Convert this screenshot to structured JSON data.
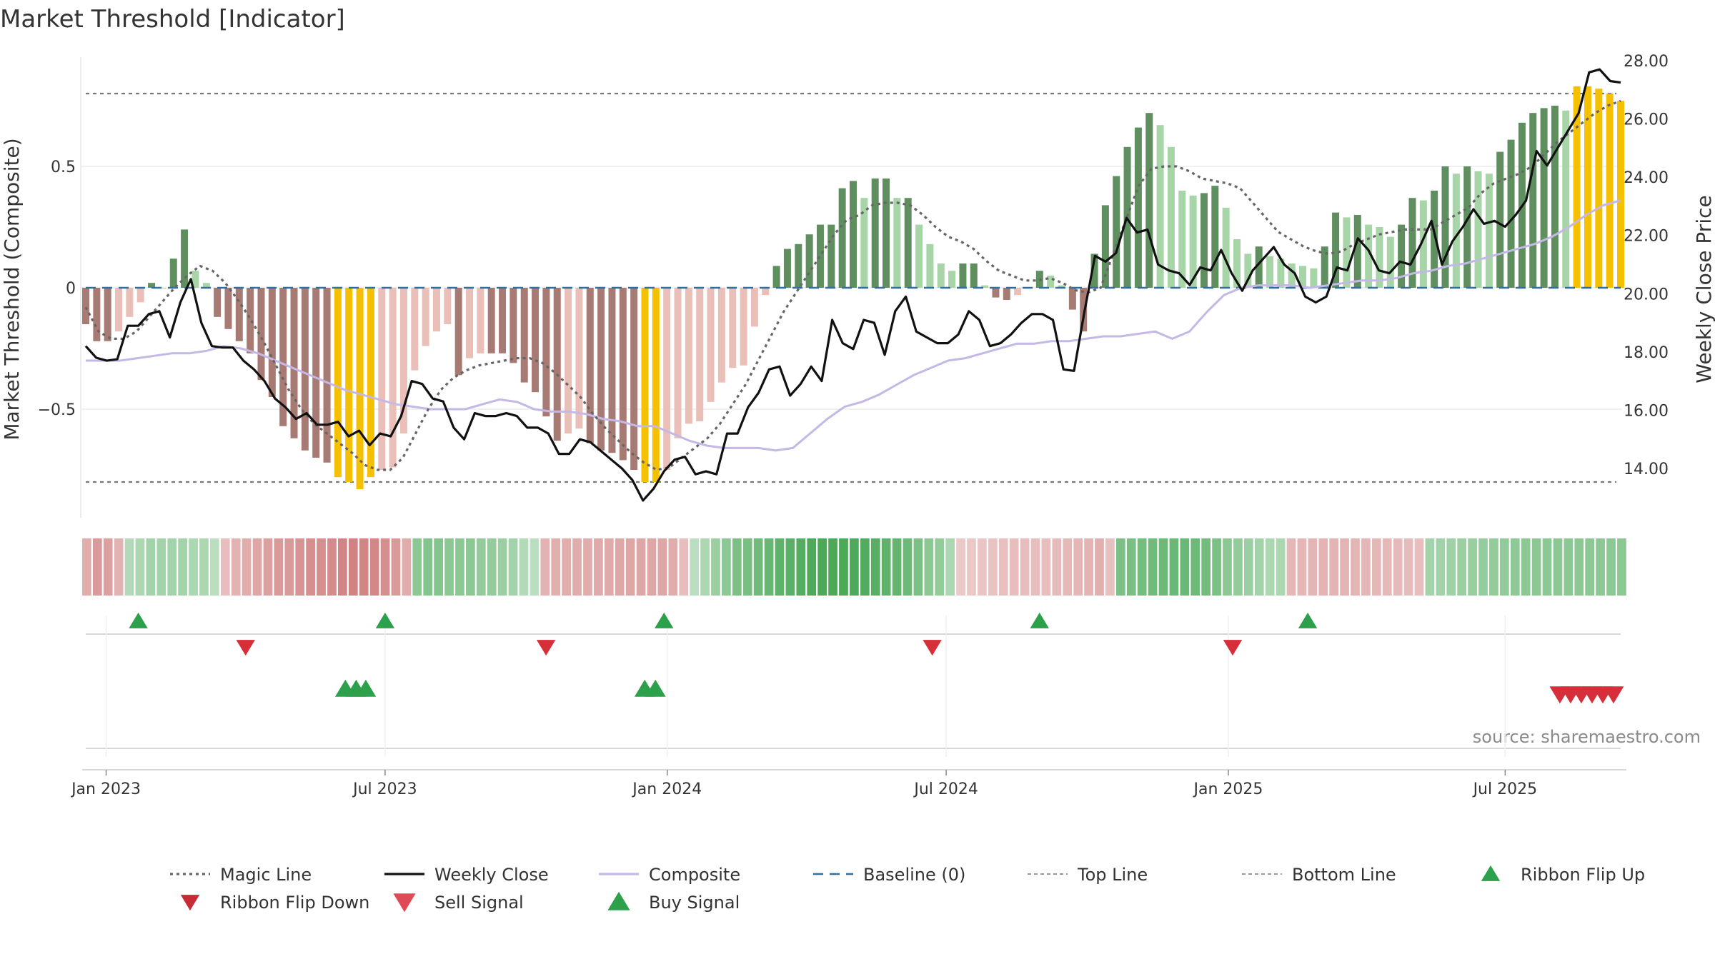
{
  "colors": {
    "close": "#111111",
    "magic": "#666666",
    "composite": "#c4b8e6",
    "baseline": "#2f6f9f",
    "threshold": "#777777",
    "bar_strong_pos": "#5f8f5f",
    "bar_weak_pos": "#a8d5a8",
    "bar_strong_neg": "#a87a74",
    "bar_weak_neg": "#eabfb8",
    "bar_extreme": "#f5c000",
    "ribbon_pos": "#3fa34d",
    "ribbon_neg": "#c96a6a",
    "signal_up": "#2ca04a",
    "signal_down": "#d62f3a"
  },
  "chart_data": {
    "type": "bar",
    "title": "Market Threshold [Indicator]",
    "ylabel_left": "Market Threshold (Composite)",
    "ylabel_right": "Weekly Close Price",
    "source": "source: sharemaestro.com",
    "left_ticks": [
      {
        "v": 0.5,
        "label": "0.5"
      },
      {
        "v": 0,
        "label": "0"
      },
      {
        "v": -0.5,
        "label": "−0.5"
      }
    ],
    "right_ticks": [
      "28.00",
      "26.00",
      "24.00",
      "22.00",
      "20.00",
      "18.00",
      "16.00",
      "14.00"
    ],
    "right_tick_values": [
      28,
      26,
      24,
      22,
      20,
      18,
      16,
      14
    ],
    "x_ticks": [
      {
        "w": 0,
        "label": "Jan 2023"
      },
      {
        "w": 26,
        "label": "Jul 2023"
      },
      {
        "w": 52.3,
        "label": "Jan 2024"
      },
      {
        "w": 78.3,
        "label": "Jul 2024"
      },
      {
        "w": 104.6,
        "label": "Jan 2025"
      },
      {
        "w": 130.4,
        "label": "Jul 2025"
      }
    ],
    "x_range_weeks": [
      -2.1,
      141.7
    ],
    "top_line": 0.8,
    "bottom_line": -0.8,
    "composite_range": [
      -0.9,
      0.95
    ],
    "price_range": [
      12.6,
      28.7
    ],
    "weekly_close": [
      18.2,
      17.8,
      17.7,
      17.75,
      18.9,
      18.9,
      19.3,
      19.4,
      18.5,
      19.7,
      20.5,
      19.0,
      18.2,
      18.15,
      18.15,
      17.7,
      17.4,
      17.0,
      16.4,
      16.1,
      15.7,
      15.9,
      15.5,
      15.5,
      15.6,
      15.1,
      15.3,
      14.8,
      15.2,
      15.1,
      15.8,
      17.0,
      16.9,
      16.4,
      16.3,
      15.4,
      15.0,
      15.9,
      15.8,
      15.8,
      15.9,
      15.8,
      15.4,
      15.4,
      15.2,
      14.5,
      14.5,
      15.0,
      14.9,
      14.6,
      14.3,
      14.0,
      13.6,
      12.9,
      13.3,
      13.9,
      14.3,
      14.4,
      13.8,
      13.9,
      13.8,
      15.2,
      15.2,
      16.1,
      16.6,
      17.4,
      17.5,
      16.5,
      16.9,
      17.5,
      17.0,
      19.1,
      18.3,
      18.1,
      19.1,
      19.0,
      17.9,
      19.4,
      19.9,
      18.7,
      18.5,
      18.3,
      18.3,
      18.6,
      19.4,
      19.1,
      18.2,
      18.3,
      18.6,
      19.0,
      19.3,
      19.3,
      19.1,
      17.4,
      17.35,
      19.4,
      21.3,
      21.1,
      21.4,
      22.6,
      22.1,
      22.2,
      21.0,
      20.8,
      20.7,
      20.3,
      20.9,
      20.8,
      21.5,
      20.7,
      20.1,
      20.8,
      21.2,
      21.6,
      21.0,
      20.7,
      19.9,
      19.7,
      19.9,
      20.9,
      20.8,
      21.9,
      21.5,
      20.8,
      20.7,
      21.1,
      21.0,
      21.7,
      22.5,
      21.0,
      21.8,
      22.3,
      22.9,
      22.4,
      22.5,
      22.3,
      22.7,
      23.2,
      24.9,
      24.4,
      25.0,
      25.6,
      26.2,
      27.6,
      27.7,
      27.3,
      27.25
    ],
    "magic_line": [
      -0.08,
      -0.18,
      -0.21,
      -0.21,
      -0.18,
      -0.12,
      -0.06,
      0.0,
      0.05,
      0.09,
      0.07,
      0.02,
      -0.05,
      -0.13,
      -0.22,
      -0.32,
      -0.42,
      -0.5,
      -0.56,
      -0.6,
      -0.64,
      -0.68,
      -0.73,
      -0.75,
      -0.75,
      -0.7,
      -0.6,
      -0.5,
      -0.42,
      -0.37,
      -0.34,
      -0.32,
      -0.31,
      -0.3,
      -0.29,
      -0.29,
      -0.31,
      -0.35,
      -0.4,
      -0.45,
      -0.52,
      -0.58,
      -0.63,
      -0.68,
      -0.72,
      -0.75,
      -0.74,
      -0.7,
      -0.66,
      -0.62,
      -0.56,
      -0.48,
      -0.4,
      -0.3,
      -0.2,
      -0.1,
      -0.02,
      0.06,
      0.14,
      0.22,
      0.28,
      0.3,
      0.34,
      0.35,
      0.35,
      0.34,
      0.3,
      0.25,
      0.21,
      0.19,
      0.16,
      0.11,
      0.07,
      0.05,
      0.03,
      0.03,
      0.04,
      0.02,
      -0.01,
      -0.02,
      0.0,
      0.14,
      0.28,
      0.42,
      0.49,
      0.5,
      0.5,
      0.48,
      0.45,
      0.44,
      0.43,
      0.41,
      0.35,
      0.29,
      0.23,
      0.2,
      0.17,
      0.15,
      0.14,
      0.15,
      0.18,
      0.2,
      0.22,
      0.23,
      0.24,
      0.24,
      0.24,
      0.27,
      0.3,
      0.33,
      0.39,
      0.43,
      0.45,
      0.47,
      0.5,
      0.55,
      0.6,
      0.64,
      0.68,
      0.72,
      0.75,
      0.77
    ],
    "composite": [
      -0.3,
      -0.3,
      -0.3,
      -0.29,
      -0.28,
      -0.27,
      -0.27,
      -0.26,
      -0.24,
      -0.25,
      -0.27,
      -0.3,
      -0.33,
      -0.36,
      -0.39,
      -0.42,
      -0.44,
      -0.46,
      -0.48,
      -0.49,
      -0.5,
      -0.5,
      -0.5,
      -0.48,
      -0.46,
      -0.47,
      -0.5,
      -0.51,
      -0.51,
      -0.52,
      -0.54,
      -0.55,
      -0.57,
      -0.57,
      -0.6,
      -0.63,
      -0.65,
      -0.66,
      -0.66,
      -0.66,
      -0.67,
      -0.66,
      -0.6,
      -0.54,
      -0.49,
      -0.47,
      -0.44,
      -0.4,
      -0.36,
      -0.33,
      -0.3,
      -0.29,
      -0.27,
      -0.25,
      -0.23,
      -0.23,
      -0.22,
      -0.22,
      -0.21,
      -0.2,
      -0.2,
      -0.19,
      -0.18,
      -0.21,
      -0.18,
      -0.1,
      -0.03,
      0.0,
      0.01,
      0.01,
      0.01,
      0.0,
      0.01,
      0.02,
      0.03,
      0.03,
      0.04,
      0.06,
      0.07,
      0.09,
      0.1,
      0.12,
      0.14,
      0.16,
      0.18,
      0.21,
      0.25,
      0.3,
      0.34,
      0.36
    ],
    "bars": [
      -0.15,
      -0.22,
      -0.22,
      -0.18,
      -0.12,
      -0.06,
      0.02,
      0.0,
      0.12,
      0.24,
      0.07,
      0.02,
      -0.12,
      -0.17,
      -0.22,
      -0.27,
      -0.38,
      -0.45,
      -0.57,
      -0.62,
      -0.67,
      -0.7,
      -0.72,
      -0.78,
      -0.8,
      -0.83,
      -0.78,
      -0.75,
      -0.74,
      -0.6,
      -0.34,
      -0.24,
      -0.18,
      -0.15,
      -0.36,
      -0.29,
      -0.27,
      -0.27,
      -0.27,
      -0.31,
      -0.39,
      -0.43,
      -0.53,
      -0.63,
      -0.6,
      -0.58,
      -0.64,
      -0.67,
      -0.68,
      -0.71,
      -0.75,
      -0.8,
      -0.8,
      -0.75,
      -0.62,
      -0.56,
      -0.55,
      -0.47,
      -0.39,
      -0.33,
      -0.32,
      -0.16,
      -0.03,
      0.09,
      0.16,
      0.18,
      0.22,
      0.26,
      0.26,
      0.41,
      0.44,
      0.37,
      0.45,
      0.45,
      0.37,
      0.37,
      0.26,
      0.18,
      0.1,
      0.07,
      0.1,
      0.1,
      0.01,
      -0.04,
      -0.05,
      -0.03,
      0.0,
      0.07,
      0.05,
      0.01,
      -0.09,
      -0.18,
      0.14,
      0.34,
      0.46,
      0.58,
      0.66,
      0.72,
      0.67,
      0.58,
      0.4,
      0.38,
      0.39,
      0.42,
      0.33,
      0.2,
      0.14,
      0.17,
      0.13,
      0.12,
      0.1,
      0.09,
      0.08,
      0.17,
      0.31,
      0.29,
      0.3,
      0.26,
      0.25,
      0.21,
      0.26,
      0.37,
      0.36,
      0.4,
      0.5,
      0.47,
      0.5,
      0.48,
      0.47,
      0.56,
      0.61,
      0.68,
      0.72,
      0.74,
      0.75,
      0.73,
      0.83,
      0.83,
      0.82,
      0.8,
      0.77
    ],
    "ribbon": [
      -0.45,
      -0.6,
      -0.55,
      -0.4,
      0.25,
      0.3,
      0.35,
      0.35,
      0.35,
      0.35,
      0.3,
      0.3,
      0.2,
      -0.3,
      -0.4,
      -0.45,
      -0.5,
      -0.55,
      -0.6,
      -0.6,
      -0.65,
      -0.7,
      -0.7,
      -0.72,
      -0.78,
      -0.8,
      -0.78,
      -0.76,
      -0.7,
      -0.6,
      -0.45,
      0.5,
      0.55,
      0.55,
      0.5,
      0.5,
      0.5,
      0.45,
      0.45,
      0.4,
      0.35,
      0.25,
      0.2,
      -0.4,
      -0.42,
      -0.44,
      -0.45,
      -0.45,
      -0.46,
      -0.46,
      -0.48,
      -0.5,
      -0.5,
      -0.5,
      -0.5,
      -0.45,
      -0.3,
      0.2,
      0.3,
      0.4,
      0.5,
      0.6,
      0.62,
      0.68,
      0.74,
      0.8,
      0.82,
      0.86,
      0.9,
      0.92,
      0.92,
      0.92,
      0.9,
      0.88,
      0.84,
      0.8,
      0.76,
      0.7,
      0.6,
      0.5,
      0.45,
      0.3,
      -0.2,
      -0.22,
      -0.24,
      -0.26,
      -0.28,
      -0.3,
      -0.3,
      -0.3,
      -0.3,
      -0.32,
      -0.34,
      -0.36,
      -0.38,
      -0.42,
      -0.28,
      0.6,
      0.62,
      0.65,
      0.68,
      0.7,
      0.72,
      0.72,
      0.7,
      0.66,
      0.6,
      0.5,
      0.45,
      0.4,
      0.35,
      0.3,
      0.3,
      -0.35,
      -0.36,
      -0.37,
      -0.38,
      -0.38,
      -0.38,
      -0.37,
      -0.36,
      -0.35,
      -0.34,
      -0.33,
      -0.32,
      -0.3,
      0.35,
      0.36,
      0.38,
      0.4,
      0.42,
      0.44,
      0.45,
      0.46,
      0.48,
      0.5,
      0.5,
      0.5,
      0.5,
      0.5,
      0.5,
      0.5,
      0.5,
      0.5,
      0.5
    ],
    "ribbon_flip_up": [
      3,
      26,
      52,
      87,
      112
    ],
    "ribbon_flip_down": [
      13,
      41,
      77,
      105
    ],
    "buy_signal": [
      22.3,
      23.3,
      24.2,
      50.2,
      51.2
    ],
    "sell_signal": [
      135.5,
      136.5,
      137.5,
      138.5,
      139.5,
      140.5
    ],
    "legend": [
      {
        "label": "Magic Line",
        "kind": "dotted"
      },
      {
        "label": "Weekly Close",
        "kind": "solid"
      },
      {
        "label": "Composite",
        "kind": "composite"
      },
      {
        "label": "Baseline (0)",
        "kind": "dashed"
      },
      {
        "label": "Top Line",
        "kind": "thin-dashed"
      },
      {
        "label": "Bottom Line",
        "kind": "thin-dashed"
      },
      {
        "label": "Ribbon Flip Up",
        "kind": "tri-up-dark"
      },
      {
        "label": "Ribbon Flip Down",
        "kind": "tri-down-dark"
      },
      {
        "label": "Sell Signal",
        "kind": "tri-down"
      },
      {
        "label": "Buy Signal",
        "kind": "tri-up"
      }
    ]
  }
}
